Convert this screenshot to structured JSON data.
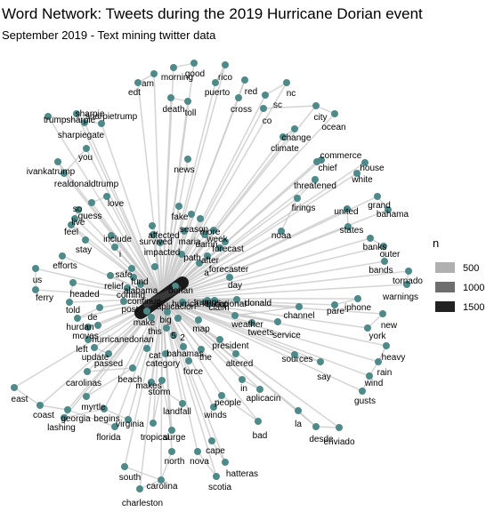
{
  "title": "Word Network: Tweets during the 2019 Hurricane Dorian event",
  "subtitle": "September 2019 - Text mining twitter data",
  "colors": {
    "node": "#4f8a8b",
    "edge": "#c8c8c8",
    "edge_dark": "#1a1a1a"
  },
  "legend": {
    "title": "n",
    "items": [
      {
        "label": "500",
        "color": "#b0b0b0"
      },
      {
        "label": "1000",
        "color": "#6e6e6e"
      },
      {
        "label": "1500",
        "color": "#222222"
      }
    ]
  },
  "words": [
    "am",
    "edt",
    "morning",
    "good",
    "rico",
    "puerto",
    "red",
    "nc",
    "sc",
    "death",
    "toll",
    "cross",
    "co",
    "city",
    "ocean",
    "change",
    "climate",
    "trumpsharpie",
    "sharpie",
    "sharpiegate",
    "sharpietrump",
    "you",
    "ivankatrump",
    "realdonaldtrump",
    "commerce",
    "chief",
    "house",
    "white",
    "threatened",
    "news",
    "love",
    "so",
    "guess",
    "live",
    "feel",
    "stay",
    "efforts",
    "us",
    "ferry",
    "headed",
    "told",
    "de",
    "hurdan",
    "moves",
    "left",
    "update",
    "passed",
    "carolinas",
    "beach",
    "storm",
    "east",
    "coast",
    "lashing",
    "georgia",
    "myrtle",
    "begins",
    "virginia",
    "florida",
    "tropical",
    "surge",
    "landfall",
    "makes",
    "north",
    "nova",
    "cape",
    "hatteras",
    "scotia",
    "south",
    "carolina",
    "charleston",
    "include",
    "i",
    "safe",
    "relief",
    "fund",
    "coming",
    "alabama",
    "continue",
    "post",
    "category",
    "cat",
    "bahamas",
    "force",
    "the",
    "map",
    "president",
    "altered",
    "weather",
    "tweets",
    "service",
    "sources",
    "say",
    "in",
    "aplicacin",
    "people",
    "winds",
    "bad",
    "la",
    "desde",
    "enviado",
    "fake",
    "season",
    "maria",
    "week",
    "affected",
    "survived",
    "impacted",
    "damn",
    "forecast",
    "forecaster",
    "more",
    "path",
    "after",
    "a",
    "claim",
    "trumps",
    "trump",
    "national",
    "donald",
    "day",
    "channel",
    "pare",
    "iphone",
    "new",
    "york",
    "heavy",
    "rain",
    "wind",
    "gusts",
    "warnings",
    "bands",
    "tornado",
    "outer",
    "banks",
    "states",
    "united",
    "grand",
    "bahama",
    "firings",
    "noaa",
    "hurricanedorian",
    "hurricane",
    "dorian",
    "5",
    "2",
    "this",
    "make",
    "big",
    "aplicacion"
  ]
}
